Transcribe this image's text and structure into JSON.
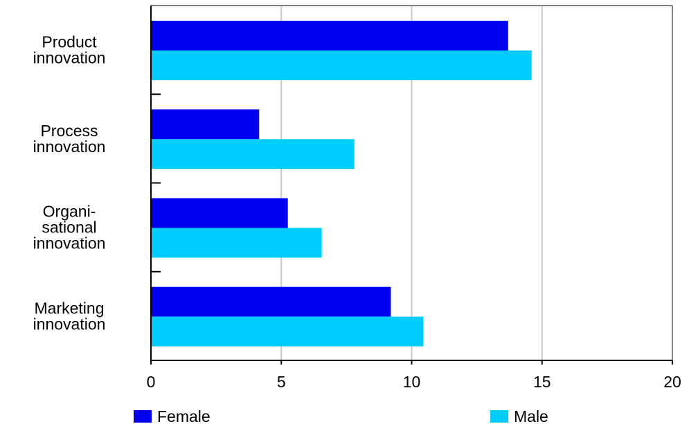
{
  "chart_data": {
    "type": "bar",
    "orientation": "horizontal",
    "title": "",
    "xlabel": "",
    "ylabel": "",
    "categories": [
      [
        "Product",
        "innovation"
      ],
      [
        "Process",
        "innovation"
      ],
      [
        "Organi-",
        "sational",
        "innovation"
      ],
      [
        "Marketing",
        "innovation"
      ]
    ],
    "series": [
      {
        "name": "Female",
        "color": "#0000ee",
        "values": [
          13.7,
          4.15,
          5.25,
          9.2
        ]
      },
      {
        "name": "Male",
        "color": "#00ccff",
        "values": [
          14.6,
          7.8,
          6.55,
          10.45
        ]
      }
    ],
    "xlim": [
      0,
      20
    ],
    "xticks": [
      "0",
      "5",
      "10",
      "15",
      "20"
    ],
    "grid": true,
    "legend": {
      "position": "bottom"
    }
  }
}
